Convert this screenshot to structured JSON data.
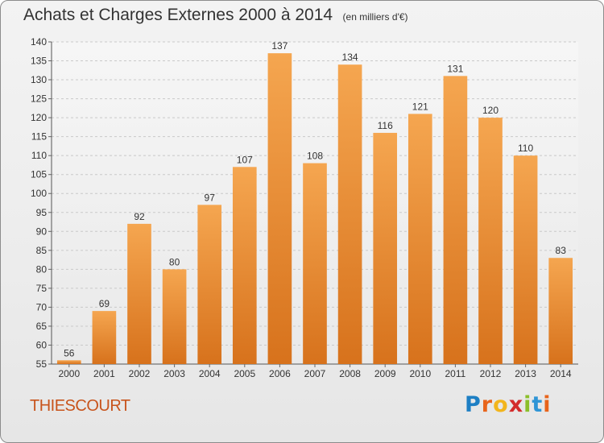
{
  "header": {
    "title": "Achats et Charges Externes 2000 à 2014",
    "subtitle": "(en milliers d'€)"
  },
  "commune": "THIESCOURT",
  "brand": {
    "letters": [
      "P",
      "r",
      "o",
      "x",
      "i",
      "t",
      "i"
    ],
    "colors": [
      "#1d7fc4",
      "#e8641b",
      "#f2b51c",
      "#d32b2b",
      "#8bbf2a",
      "#2f95d6",
      "#e8641b"
    ]
  },
  "chart_data": {
    "type": "bar",
    "title": "Achats et Charges Externes 2000 à 2014",
    "subtitle": "(en milliers d'€)",
    "categories": [
      "2000",
      "2001",
      "2002",
      "2003",
      "2004",
      "2005",
      "2006",
      "2007",
      "2008",
      "2009",
      "2010",
      "2011",
      "2012",
      "2013",
      "2014"
    ],
    "values": [
      56,
      69,
      92,
      80,
      97,
      107,
      137,
      108,
      134,
      116,
      121,
      131,
      120,
      110,
      83
    ],
    "ylim": [
      55,
      140
    ],
    "yticks": [
      55,
      60,
      65,
      70,
      75,
      80,
      85,
      90,
      95,
      100,
      105,
      110,
      115,
      120,
      125,
      130,
      135,
      140
    ],
    "grid": true,
    "bar_color": "#f09a3e"
  }
}
